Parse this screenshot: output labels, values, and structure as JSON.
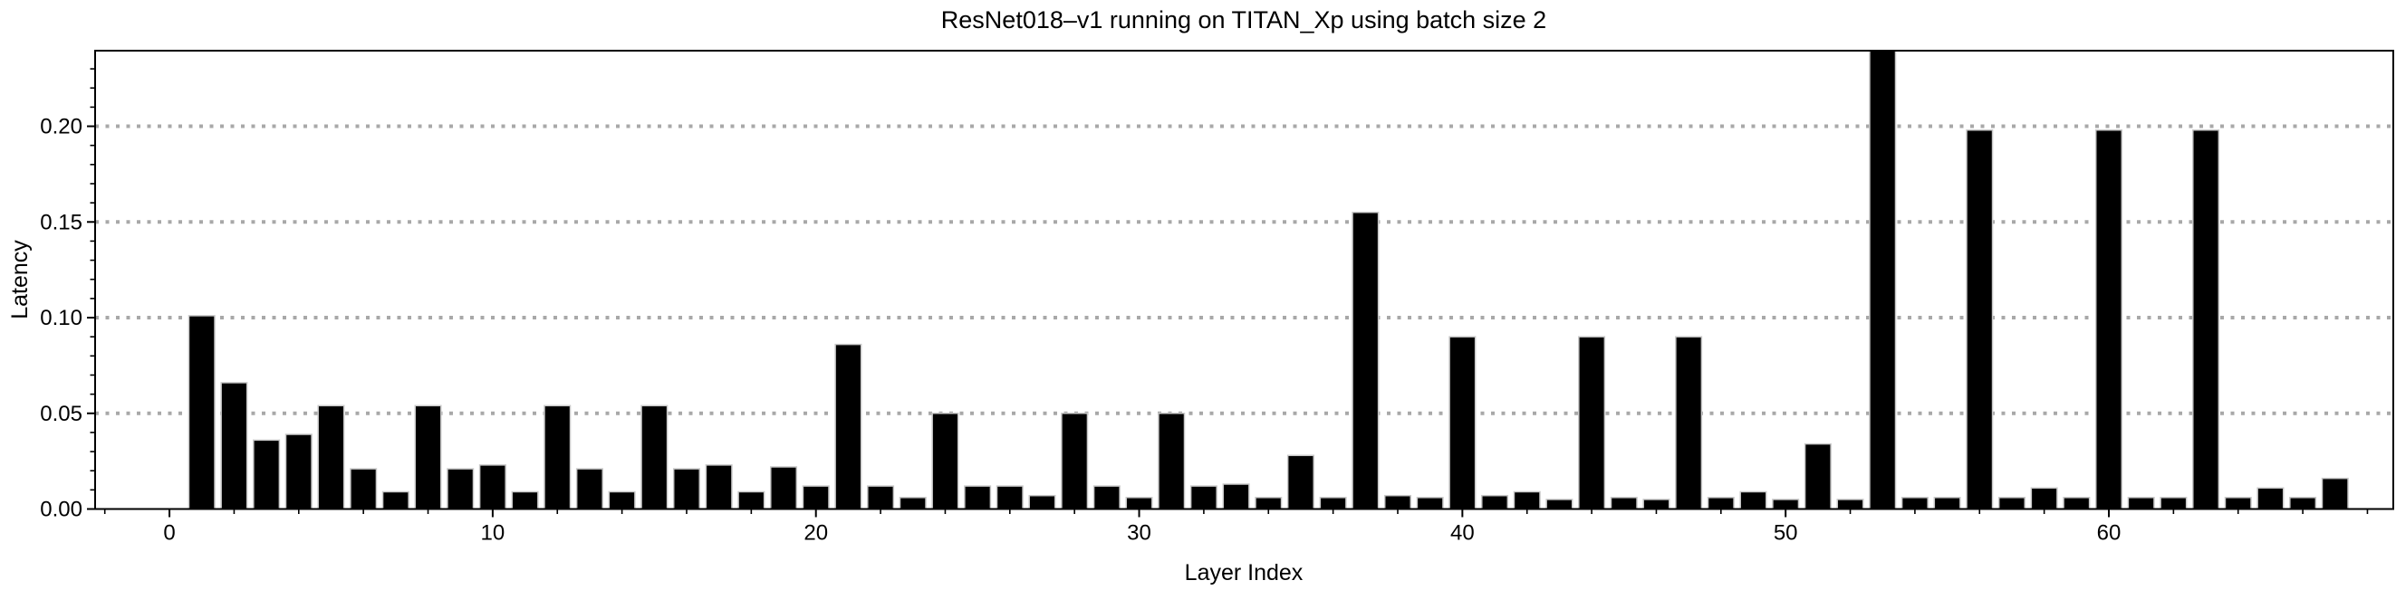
{
  "chart_data": {
    "type": "bar",
    "title": "ResNet018–v1 running on TITAN_Xp using batch size 2",
    "xlabel": "Layer Index",
    "ylabel": "Latency",
    "x_first_index": 1,
    "values": [
      0.101,
      0.066,
      0.036,
      0.039,
      0.054,
      0.021,
      0.009,
      0.054,
      0.021,
      0.023,
      0.009,
      0.054,
      0.021,
      0.009,
      0.054,
      0.021,
      0.023,
      0.009,
      0.022,
      0.012,
      0.086,
      0.012,
      0.006,
      0.05,
      0.012,
      0.012,
      0.007,
      0.05,
      0.012,
      0.006,
      0.05,
      0.012,
      0.013,
      0.006,
      0.028,
      0.006,
      0.155,
      0.007,
      0.006,
      0.09,
      0.007,
      0.009,
      0.005,
      0.09,
      0.006,
      0.005,
      0.09,
      0.006,
      0.009,
      0.005,
      0.034,
      0.005,
      0.24,
      0.006,
      0.006,
      0.198,
      0.006,
      0.011,
      0.006,
      0.198,
      0.006,
      0.006,
      0.198,
      0.006,
      0.011,
      0.006,
      0.016
    ],
    "xlim": [
      -2.3,
      68.8
    ],
    "ylim": [
      0,
      0.2395
    ],
    "bar_rel_width": 0.8,
    "xticks_major": {
      "positions": [
        0,
        10,
        20,
        30,
        40,
        50,
        60
      ],
      "labels": [
        "0",
        "10",
        "20",
        "30",
        "40",
        "50",
        "60"
      ]
    },
    "xticks_minor_step": 2,
    "yticks_major": {
      "positions": [
        0.0,
        0.05,
        0.1,
        0.15,
        0.2
      ],
      "labels": [
        "0.00",
        "0.05",
        "0.10",
        "0.15",
        "0.20"
      ]
    },
    "yticks_minor_step": 0.01,
    "grid": {
      "show": true,
      "at": [
        0.05,
        0.1,
        0.15,
        0.2
      ],
      "style": "dotted",
      "color": "#a8a8a8"
    },
    "legend": null,
    "colors": {
      "bar_fill": "#000000",
      "bar_edge": "#c8c8c8",
      "axis": "#000000",
      "background": "#ffffff",
      "grid": "#a8a8a8"
    }
  }
}
